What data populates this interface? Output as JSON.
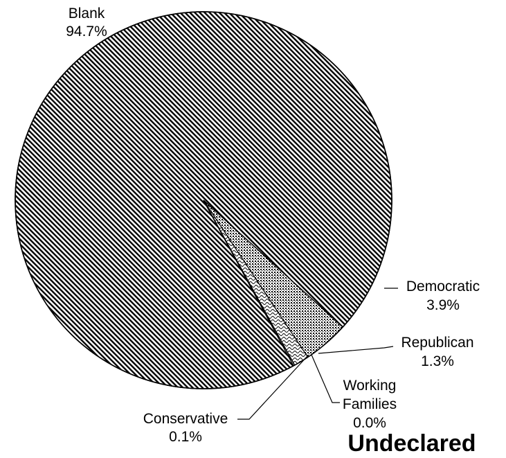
{
  "chart_data": {
    "type": "pie",
    "title": "Undeclared",
    "legend": "none",
    "slices": [
      {
        "label": "Blank",
        "value": 94.7,
        "display": "94.7%",
        "pattern": "diagonal-lines"
      },
      {
        "label": "Democratic",
        "value": 3.9,
        "display": "3.9%",
        "pattern": "dots"
      },
      {
        "label": "Republican",
        "value": 1.3,
        "display": "1.3%",
        "pattern": "waves"
      },
      {
        "label": "Working Families",
        "label_lines": [
          "Working",
          "Families"
        ],
        "value": 0.0,
        "display": "0.0%",
        "pattern": "dots-sparse"
      },
      {
        "label": "Conservative",
        "value": 0.1,
        "display": "0.1%",
        "pattern": "diagonal-lines"
      }
    ]
  }
}
